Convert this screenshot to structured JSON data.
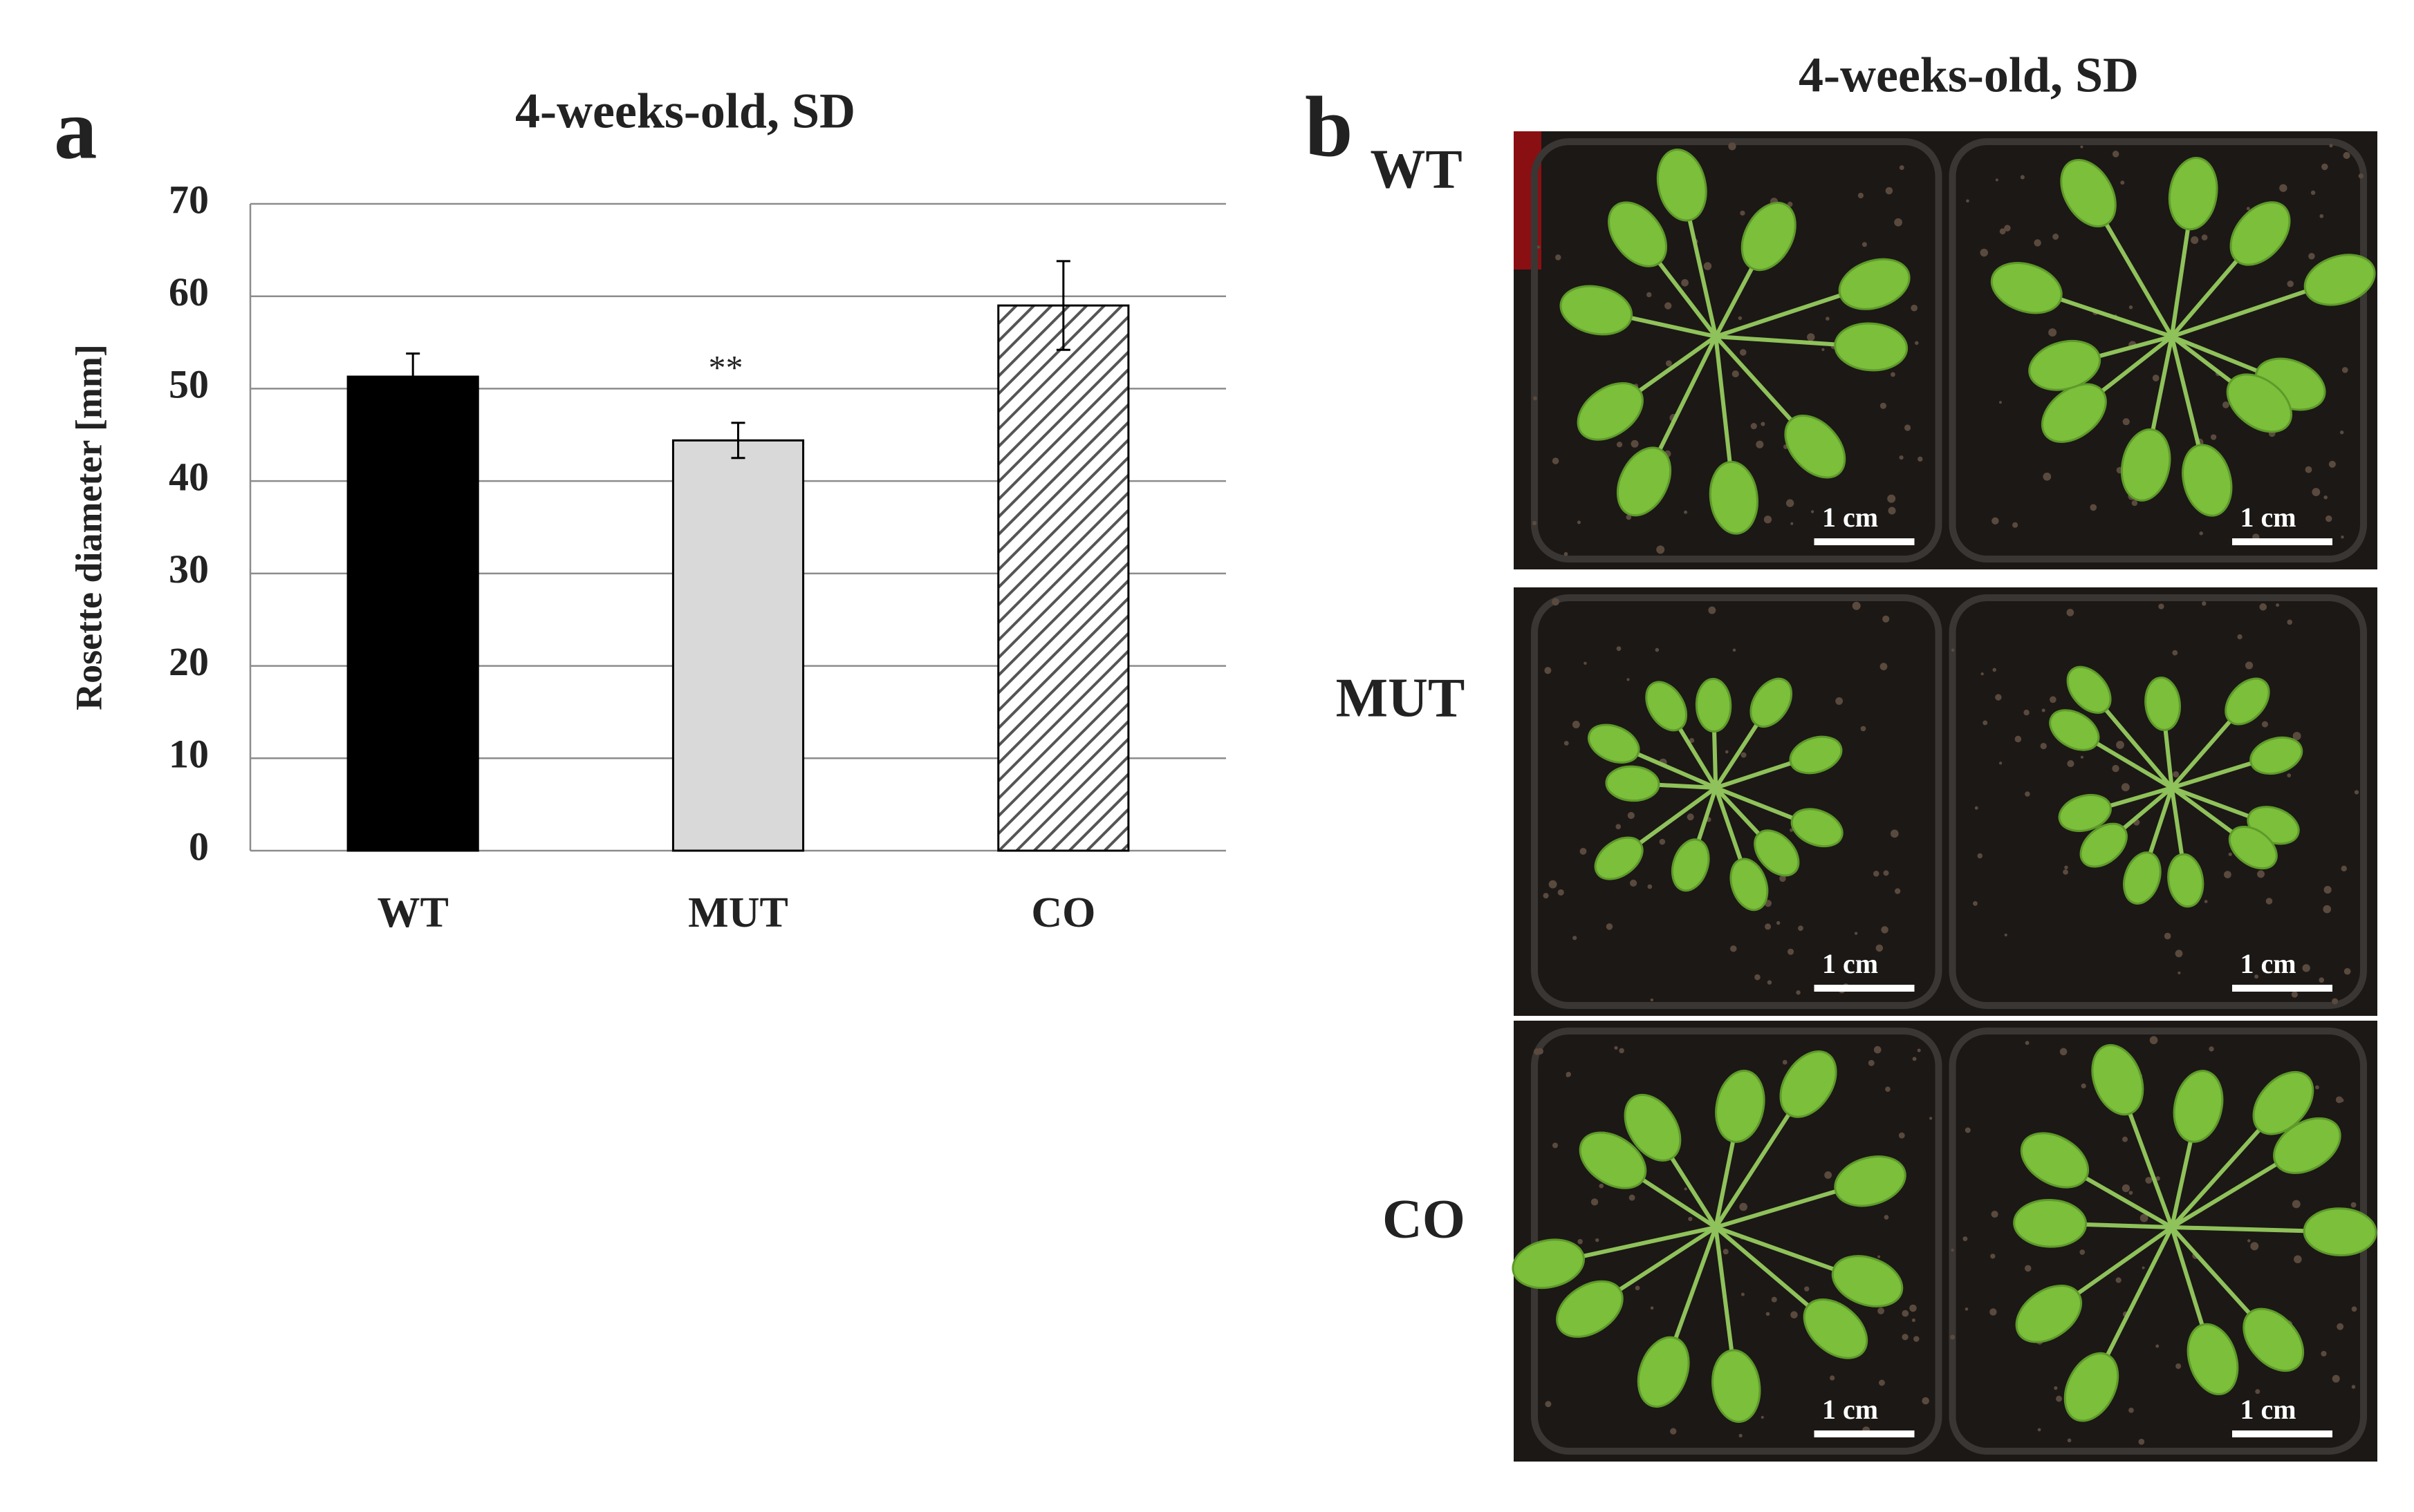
{
  "chart_data": {
    "type": "bar",
    "title": "4-weeks-old, SD",
    "panel_label": "a",
    "y_label": "Rosette diameter [mm]",
    "categories": [
      "WT",
      "MUT",
      "CO"
    ],
    "values": [
      51.3,
      44.4,
      59.0
    ],
    "errors": [
      2.5,
      1.9,
      4.8
    ],
    "fills": [
      "#000000",
      "#d9d9d9",
      "hatch"
    ],
    "ylim": [
      0,
      70
    ],
    "yticks": [
      0,
      10,
      20,
      30,
      40,
      50,
      60,
      70
    ],
    "grid": true,
    "annotations": [
      {
        "text": "**",
        "category": "MUT"
      }
    ]
  },
  "panel_b": {
    "panel_label": "b",
    "title": "4-weeks-old, SD",
    "rows": [
      "WT",
      "MUT",
      "CO"
    ],
    "scale_bar_label": "1 cm"
  }
}
